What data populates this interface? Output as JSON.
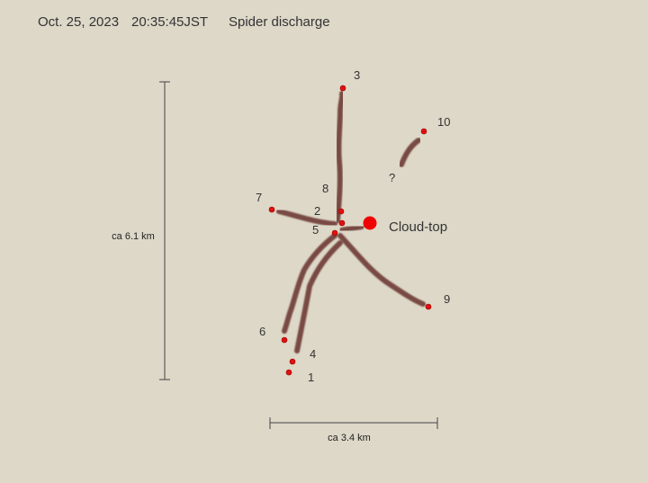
{
  "header": {
    "date": "Oct. 25, 2023",
    "time": "20:35:45JST",
    "title": "Spider discharge"
  },
  "points": [
    "1",
    "2",
    "3",
    "4",
    "5",
    "6",
    "7",
    "8",
    "9",
    "10",
    "?"
  ],
  "cloud_top": "Cloud-top",
  "scale": {
    "vertical": "ca 6.1 km",
    "horizontal": "ca 3.4 km"
  }
}
